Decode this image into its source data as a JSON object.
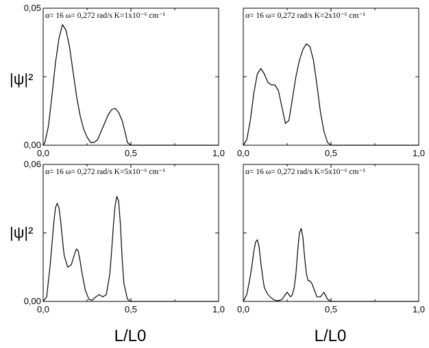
{
  "figure": {
    "ylabels": [
      "|ψ|²",
      "|ψ|²"
    ],
    "xlabels": [
      "L/L0",
      "L/L0"
    ]
  },
  "chart_data": [
    {
      "type": "line",
      "annotation": "α= 16  ω= 0,272 rad/s K=1x10⁻⁶ cm⁻¹",
      "xlim": [
        0,
        1
      ],
      "ylim": [
        0,
        0.05
      ],
      "x_tick_labels": [
        "0,0",
        "0,5",
        "1,0"
      ],
      "y_tick_labels": [
        "0,00",
        "0,05"
      ],
      "grid": false,
      "series": [
        {
          "x": [
            0.0,
            0.01,
            0.03,
            0.05,
            0.07,
            0.09,
            0.11,
            0.13,
            0.15,
            0.17,
            0.19,
            0.21,
            0.23,
            0.25,
            0.27,
            0.29,
            0.31,
            0.33,
            0.35,
            0.37,
            0.39,
            0.41,
            0.43,
            0.45,
            0.47,
            0.48,
            0.5,
            1.0
          ],
          "y": [
            0.0,
            0.001,
            0.007,
            0.018,
            0.03,
            0.039,
            0.044,
            0.042,
            0.036,
            0.027,
            0.018,
            0.011,
            0.006,
            0.003,
            0.001,
            0.001,
            0.002,
            0.005,
            0.008,
            0.011,
            0.013,
            0.0135,
            0.012,
            0.009,
            0.004,
            0.001,
            0.0,
            0.0
          ]
        }
      ]
    },
    {
      "type": "line",
      "annotation": "α= 16  ω= 0,272 rad/s K=2x10⁻⁶ cm⁻¹",
      "xlim": [
        0,
        1
      ],
      "ylim": [
        0,
        0.05
      ],
      "x_tick_labels": [
        "0,0",
        "0,5",
        "1,0"
      ],
      "y_tick_labels": [],
      "grid": false,
      "series": [
        {
          "x": [
            0.0,
            0.02,
            0.04,
            0.06,
            0.08,
            0.1,
            0.12,
            0.14,
            0.16,
            0.18,
            0.2,
            0.22,
            0.24,
            0.26,
            0.28,
            0.3,
            0.32,
            0.34,
            0.36,
            0.38,
            0.4,
            0.42,
            0.44,
            0.46,
            0.48,
            0.5,
            1.0
          ],
          "y": [
            0.0,
            0.002,
            0.009,
            0.019,
            0.026,
            0.028,
            0.026,
            0.023,
            0.022,
            0.022,
            0.02,
            0.014,
            0.008,
            0.009,
            0.017,
            0.025,
            0.031,
            0.035,
            0.037,
            0.036,
            0.031,
            0.022,
            0.012,
            0.005,
            0.001,
            0.0,
            0.0
          ]
        }
      ]
    },
    {
      "type": "line",
      "annotation": "α= 16  ω= 0,272 rad/s K=5x10⁻⁶ cm⁻¹",
      "xlim": [
        0,
        1
      ],
      "ylim": [
        0,
        0.06
      ],
      "x_tick_labels": [
        "0,0",
        "0,5",
        "1,0"
      ],
      "y_tick_labels": [
        "0,00",
        "0,06"
      ],
      "grid": false,
      "series": [
        {
          "x": [
            0.0,
            0.02,
            0.04,
            0.06,
            0.07,
            0.08,
            0.09,
            0.1,
            0.11,
            0.12,
            0.14,
            0.16,
            0.18,
            0.19,
            0.2,
            0.21,
            0.22,
            0.24,
            0.26,
            0.28,
            0.3,
            0.32,
            0.34,
            0.36,
            0.38,
            0.39,
            0.4,
            0.41,
            0.42,
            0.43,
            0.44,
            0.45,
            0.46,
            0.48,
            0.5,
            1.0
          ],
          "y": [
            0.0,
            0.002,
            0.016,
            0.034,
            0.041,
            0.043,
            0.041,
            0.035,
            0.027,
            0.02,
            0.015,
            0.016,
            0.021,
            0.023,
            0.022,
            0.018,
            0.013,
            0.005,
            0.001,
            0.0005,
            0.002,
            0.003,
            0.002,
            0.003,
            0.012,
            0.022,
            0.033,
            0.042,
            0.046,
            0.044,
            0.034,
            0.019,
            0.008,
            0.001,
            0.0,
            0.0
          ]
        }
      ]
    },
    {
      "type": "line",
      "annotation": "α= 16  ω= 0,272 rad/s K=5x10⁻⁶ cm⁻¹",
      "xlim": [
        0,
        1
      ],
      "ylim": [
        0,
        0.06
      ],
      "x_tick_labels": [
        "0,0",
        "0,5",
        "1,0"
      ],
      "y_tick_labels": [],
      "grid": false,
      "series": [
        {
          "x": [
            0.0,
            0.02,
            0.04,
            0.05,
            0.06,
            0.07,
            0.08,
            0.09,
            0.1,
            0.11,
            0.12,
            0.14,
            0.16,
            0.18,
            0.2,
            0.22,
            0.24,
            0.25,
            0.26,
            0.27,
            0.28,
            0.29,
            0.3,
            0.31,
            0.32,
            0.33,
            0.34,
            0.35,
            0.36,
            0.37,
            0.38,
            0.39,
            0.4,
            0.42,
            0.44,
            0.46,
            0.48,
            0.5,
            1.0
          ],
          "y": [
            0.0,
            0.003,
            0.011,
            0.016,
            0.022,
            0.026,
            0.027,
            0.024,
            0.017,
            0.011,
            0.006,
            0.003,
            0.0015,
            0.0005,
            0.0003,
            0.0008,
            0.003,
            0.004,
            0.003,
            0.002,
            0.003,
            0.006,
            0.012,
            0.022,
            0.03,
            0.032,
            0.028,
            0.019,
            0.012,
            0.009,
            0.009,
            0.008,
            0.006,
            0.002,
            0.002,
            0.004,
            0.001,
            0.0,
            0.0
          ]
        }
      ]
    }
  ]
}
